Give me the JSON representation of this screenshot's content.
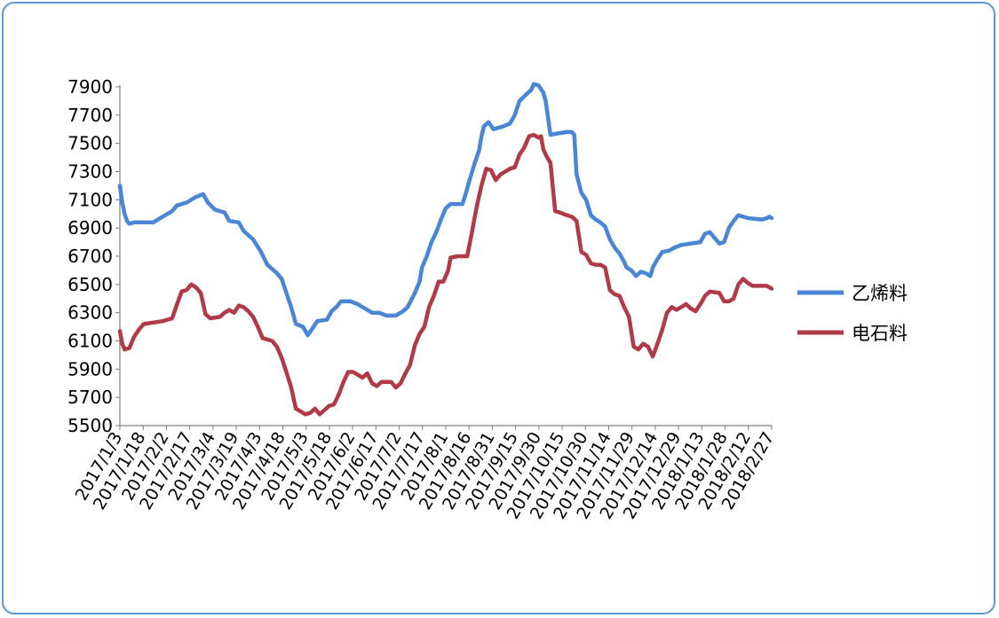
{
  "chart_data": {
    "type": "line",
    "title": "",
    "xlabel": "",
    "ylabel": "",
    "ylim": [
      5500,
      7900
    ],
    "yticks": [
      5500,
      5700,
      5900,
      6100,
      6300,
      6500,
      6700,
      6900,
      7100,
      7300,
      7500,
      7700,
      7900
    ],
    "categories": [
      "2017/1/3",
      "2017/1/18",
      "2017/2/2",
      "2017/2/17",
      "2017/3/4",
      "2017/3/19",
      "2017/4/3",
      "2017/4/18",
      "2017/5/3",
      "2017/5/18",
      "2017/6/2",
      "2017/6/17",
      "2017/7/2",
      "2017/7/17",
      "2017/8/1",
      "2017/8/16",
      "2017/8/31",
      "2017/9/15",
      "2017/9/30",
      "2017/10/15",
      "2017/10/30",
      "2017/11/14",
      "2017/11/29",
      "2017/12/14",
      "2017/12/29",
      "2018/1/13",
      "2018/1/28",
      "2018/2/12",
      "2018/2/27"
    ],
    "grid": false,
    "legend_position": "right",
    "series": [
      {
        "name": "乙烯料",
        "color": "#4a86d6",
        "points": [
          [
            0,
            7200
          ],
          [
            1,
            7080
          ],
          [
            2,
            7000
          ],
          [
            3,
            6950
          ],
          [
            4,
            6930
          ],
          [
            6,
            6940
          ],
          [
            10,
            6940
          ],
          [
            14,
            6940
          ],
          [
            18,
            6980
          ],
          [
            22,
            7020
          ],
          [
            24,
            7060
          ],
          [
            28,
            7080
          ],
          [
            32,
            7120
          ],
          [
            35,
            7140
          ],
          [
            37,
            7080
          ],
          [
            40,
            7030
          ],
          [
            44,
            7010
          ],
          [
            46,
            6950
          ],
          [
            50,
            6940
          ],
          [
            52,
            6880
          ],
          [
            56,
            6820
          ],
          [
            59,
            6740
          ],
          [
            62,
            6640
          ],
          [
            66,
            6580
          ],
          [
            68,
            6540
          ],
          [
            70,
            6440
          ],
          [
            72,
            6340
          ],
          [
            74,
            6220
          ],
          [
            77,
            6200
          ],
          [
            79,
            6140
          ],
          [
            81,
            6190
          ],
          [
            83,
            6240
          ],
          [
            87,
            6250
          ],
          [
            89,
            6310
          ],
          [
            91,
            6340
          ],
          [
            93,
            6380
          ],
          [
            97,
            6380
          ],
          [
            100,
            6360
          ],
          [
            103,
            6330
          ],
          [
            106,
            6300
          ],
          [
            109,
            6300
          ],
          [
            112,
            6280
          ],
          [
            116,
            6280
          ],
          [
            119,
            6310
          ],
          [
            121,
            6340
          ],
          [
            124,
            6440
          ],
          [
            126,
            6520
          ],
          [
            127,
            6620
          ],
          [
            129,
            6700
          ],
          [
            131,
            6800
          ],
          [
            133,
            6870
          ],
          [
            135,
            6960
          ],
          [
            137,
            7040
          ],
          [
            139,
            7070
          ],
          [
            144,
            7070
          ],
          [
            145,
            7120
          ],
          [
            147,
            7240
          ],
          [
            149,
            7350
          ],
          [
            151,
            7450
          ],
          [
            152,
            7550
          ],
          [
            153,
            7620
          ],
          [
            155,
            7650
          ],
          [
            157,
            7600
          ],
          [
            161,
            7620
          ],
          [
            164,
            7640
          ],
          [
            166,
            7700
          ],
          [
            168,
            7800
          ],
          [
            171,
            7850
          ],
          [
            173,
            7880
          ],
          [
            174,
            7920
          ],
          [
            176,
            7910
          ],
          [
            178,
            7860
          ],
          [
            179,
            7800
          ],
          [
            180,
            7680
          ],
          [
            181,
            7560
          ],
          [
            184,
            7570
          ],
          [
            188,
            7580
          ],
          [
            190,
            7580
          ],
          [
            191,
            7560
          ],
          [
            192,
            7280
          ],
          [
            194,
            7150
          ],
          [
            196,
            7100
          ],
          [
            198,
            6990
          ],
          [
            200,
            6960
          ],
          [
            202,
            6940
          ],
          [
            204,
            6910
          ],
          [
            206,
            6820
          ],
          [
            208,
            6760
          ],
          [
            210,
            6720
          ],
          [
            212,
            6660
          ],
          [
            213,
            6620
          ],
          [
            215,
            6600
          ],
          [
            217,
            6560
          ],
          [
            219,
            6590
          ],
          [
            221,
            6580
          ],
          [
            223,
            6560
          ],
          [
            224,
            6620
          ],
          [
            226,
            6680
          ],
          [
            228,
            6730
          ],
          [
            231,
            6740
          ],
          [
            233,
            6760
          ],
          [
            236,
            6780
          ],
          [
            240,
            6790
          ],
          [
            244,
            6800
          ],
          [
            246,
            6860
          ],
          [
            248,
            6870
          ],
          [
            250,
            6830
          ],
          [
            252,
            6790
          ],
          [
            254,
            6800
          ],
          [
            256,
            6900
          ],
          [
            258,
            6950
          ],
          [
            260,
            6990
          ],
          [
            262,
            6980
          ],
          [
            264,
            6970
          ],
          [
            270,
            6960
          ],
          [
            272,
            6970
          ],
          [
            273,
            6980
          ],
          [
            274,
            6970
          ]
        ]
      },
      {
        "name": "电石料",
        "color": "#b03a48",
        "points": [
          [
            0,
            6170
          ],
          [
            1,
            6080
          ],
          [
            2,
            6040
          ],
          [
            4,
            6050
          ],
          [
            6,
            6130
          ],
          [
            8,
            6180
          ],
          [
            10,
            6220
          ],
          [
            14,
            6230
          ],
          [
            18,
            6240
          ],
          [
            22,
            6260
          ],
          [
            24,
            6360
          ],
          [
            26,
            6450
          ],
          [
            28,
            6460
          ],
          [
            30,
            6500
          ],
          [
            32,
            6480
          ],
          [
            34,
            6440
          ],
          [
            36,
            6290
          ],
          [
            38,
            6260
          ],
          [
            42,
            6270
          ],
          [
            44,
            6300
          ],
          [
            46,
            6320
          ],
          [
            48,
            6300
          ],
          [
            50,
            6350
          ],
          [
            52,
            6340
          ],
          [
            54,
            6310
          ],
          [
            56,
            6270
          ],
          [
            58,
            6200
          ],
          [
            60,
            6120
          ],
          [
            64,
            6100
          ],
          [
            66,
            6060
          ],
          [
            68,
            5980
          ],
          [
            70,
            5880
          ],
          [
            72,
            5770
          ],
          [
            74,
            5620
          ],
          [
            76,
            5600
          ],
          [
            78,
            5580
          ],
          [
            80,
            5590
          ],
          [
            82,
            5620
          ],
          [
            84,
            5580
          ],
          [
            86,
            5610
          ],
          [
            88,
            5640
          ],
          [
            90,
            5650
          ],
          [
            92,
            5720
          ],
          [
            94,
            5810
          ],
          [
            96,
            5880
          ],
          [
            98,
            5880
          ],
          [
            100,
            5860
          ],
          [
            102,
            5840
          ],
          [
            104,
            5870
          ],
          [
            106,
            5800
          ],
          [
            108,
            5780
          ],
          [
            110,
            5810
          ],
          [
            114,
            5810
          ],
          [
            116,
            5770
          ],
          [
            118,
            5800
          ],
          [
            120,
            5870
          ],
          [
            122,
            5930
          ],
          [
            124,
            6070
          ],
          [
            126,
            6150
          ],
          [
            128,
            6200
          ],
          [
            130,
            6340
          ],
          [
            132,
            6420
          ],
          [
            134,
            6520
          ],
          [
            136,
            6520
          ],
          [
            138,
            6600
          ],
          [
            139,
            6690
          ],
          [
            142,
            6700
          ],
          [
            146,
            6700
          ],
          [
            148,
            6870
          ],
          [
            149,
            6960
          ],
          [
            150,
            7050
          ],
          [
            152,
            7200
          ],
          [
            154,
            7320
          ],
          [
            156,
            7310
          ],
          [
            158,
            7240
          ],
          [
            160,
            7280
          ],
          [
            162,
            7300
          ],
          [
            164,
            7320
          ],
          [
            166,
            7330
          ],
          [
            168,
            7420
          ],
          [
            170,
            7470
          ],
          [
            172,
            7550
          ],
          [
            174,
            7560
          ],
          [
            176,
            7540
          ],
          [
            177,
            7550
          ],
          [
            178,
            7460
          ],
          [
            179,
            7420
          ],
          [
            181,
            7360
          ],
          [
            183,
            7020
          ],
          [
            185,
            7010
          ],
          [
            188,
            6990
          ],
          [
            190,
            6980
          ],
          [
            192,
            6950
          ],
          [
            194,
            6730
          ],
          [
            196,
            6710
          ],
          [
            198,
            6650
          ],
          [
            200,
            6640
          ],
          [
            202,
            6640
          ],
          [
            204,
            6620
          ],
          [
            206,
            6460
          ],
          [
            208,
            6430
          ],
          [
            210,
            6420
          ],
          [
            212,
            6340
          ],
          [
            214,
            6270
          ],
          [
            216,
            6060
          ],
          [
            218,
            6040
          ],
          [
            220,
            6080
          ],
          [
            222,
            6060
          ],
          [
            224,
            5990
          ],
          [
            226,
            6080
          ],
          [
            228,
            6180
          ],
          [
            230,
            6300
          ],
          [
            232,
            6340
          ],
          [
            234,
            6320
          ],
          [
            236,
            6340
          ],
          [
            238,
            6360
          ],
          [
            240,
            6330
          ],
          [
            242,
            6310
          ],
          [
            244,
            6360
          ],
          [
            246,
            6420
          ],
          [
            248,
            6450
          ],
          [
            252,
            6440
          ],
          [
            254,
            6380
          ],
          [
            256,
            6380
          ],
          [
            258,
            6400
          ],
          [
            260,
            6500
          ],
          [
            262,
            6540
          ],
          [
            264,
            6510
          ],
          [
            266,
            6490
          ],
          [
            270,
            6490
          ],
          [
            272,
            6490
          ],
          [
            274,
            6470
          ]
        ]
      }
    ]
  }
}
